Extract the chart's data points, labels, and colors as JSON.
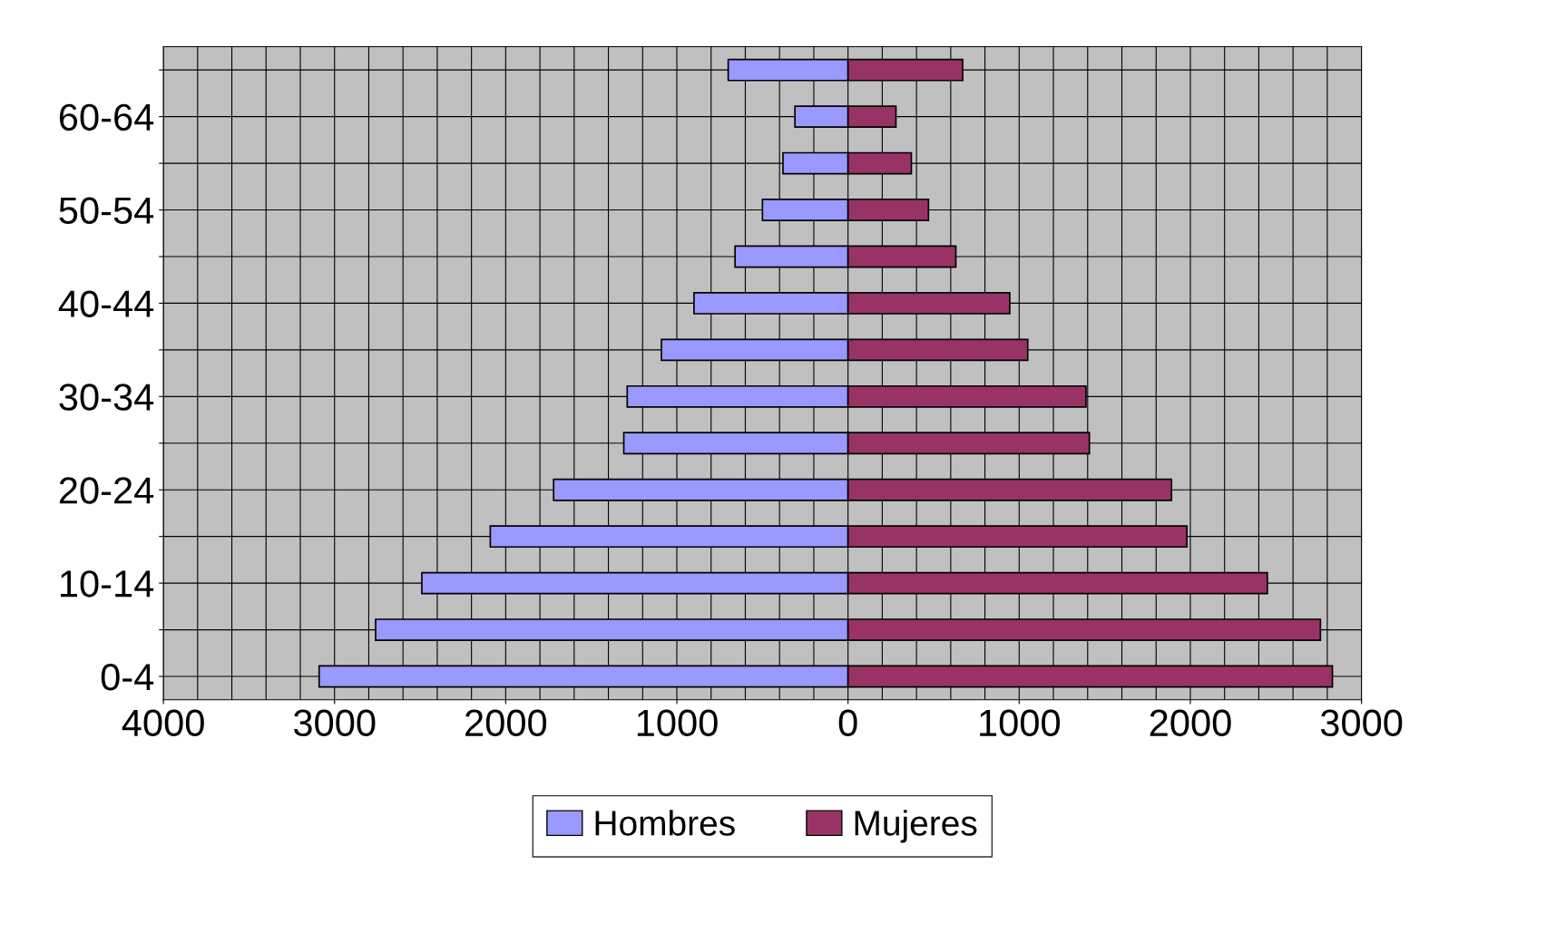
{
  "chart_data": {
    "type": "bar",
    "orientation": "horizontal",
    "categories": [
      null,
      "60-64",
      null,
      "50-54",
      null,
      "40-44",
      null,
      "30-34",
      null,
      "20-24",
      null,
      "10-14",
      null,
      "0-4"
    ],
    "series": [
      {
        "name": "Hombres",
        "color": "#9999ff",
        "values": [
          -700,
          -310,
          -380,
          -500,
          -660,
          -900,
          -1090,
          -1290,
          -1310,
          -1720,
          -2090,
          -2490,
          -2760,
          -3090
        ]
      },
      {
        "name": "Mujeres",
        "color": "#993366",
        "values": [
          670,
          280,
          370,
          470,
          630,
          945,
          1050,
          1390,
          1410,
          1890,
          1980,
          2450,
          2760,
          2830
        ]
      }
    ],
    "xlim": [
      -4000,
      3000
    ],
    "xticks": [
      {
        "value": -4000,
        "label": "4000"
      },
      {
        "value": -3000,
        "label": "3000"
      },
      {
        "value": -2000,
        "label": "2000"
      },
      {
        "value": -1000,
        "label": "1000"
      },
      0,
      1000,
      2000,
      3000
    ],
    "stacked": true,
    "grid": true,
    "legend": "bottom"
  }
}
